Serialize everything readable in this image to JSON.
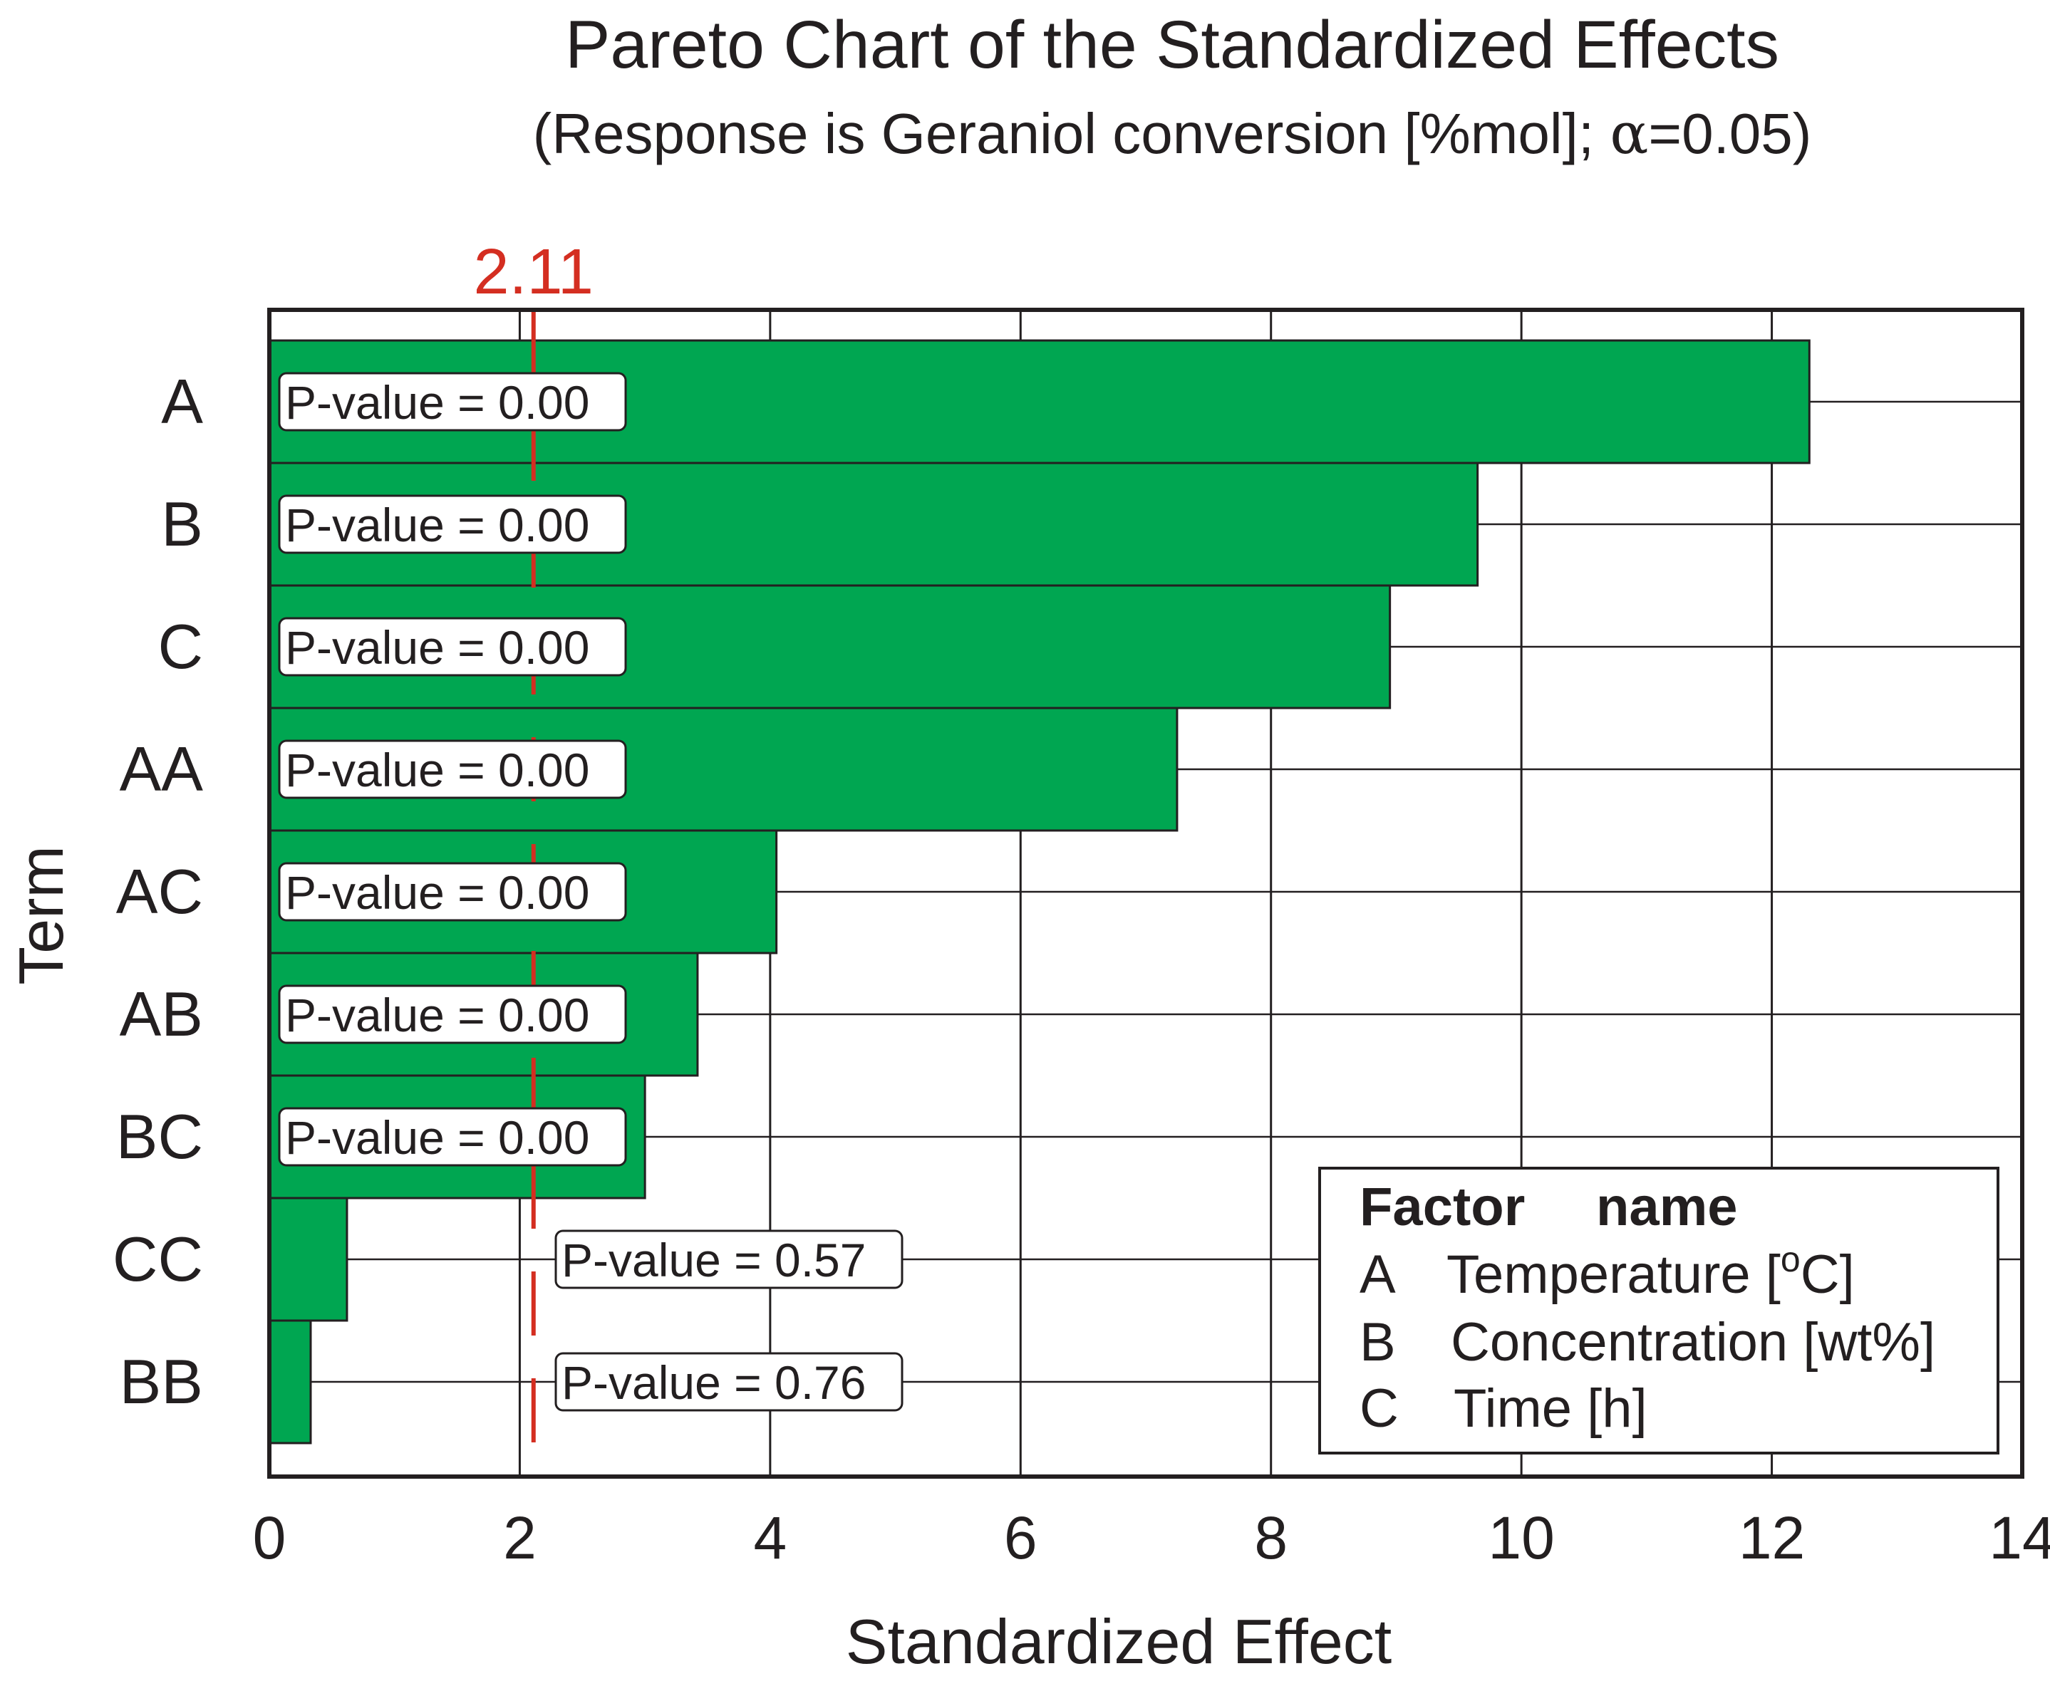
{
  "chart_data": {
    "type": "bar",
    "orientation": "horizontal",
    "title": "Pareto Chart of the Standardized Effects",
    "subtitle_prefix": "(Response is Geraniol conversion [%mol]; ",
    "subtitle_alpha_symbol": "α",
    "subtitle_suffix": "=0.05)",
    "xlabel": "Standardized Effect",
    "ylabel": "Term",
    "xlim": [
      0,
      14
    ],
    "xticks": [
      "0",
      "2",
      "4",
      "6",
      "8",
      "10",
      "12",
      "14"
    ],
    "grid": true,
    "reference_line": {
      "value": 2.11,
      "label": "2.11",
      "color": "#d42e21"
    },
    "bar_color": "#00a651",
    "categories": [
      "A",
      "B",
      "C",
      "AA",
      "AC",
      "AB",
      "BC",
      "CC",
      "BB"
    ],
    "values": [
      12.3,
      9.65,
      8.95,
      7.25,
      4.05,
      3.42,
      3.0,
      0.62,
      0.33
    ],
    "p_value_labels": [
      "P-value = 0.00",
      "P-value = 0.00",
      "P-value = 0.00",
      "P-value = 0.00",
      "P-value = 0.00",
      "P-value = 0.00",
      "P-value = 0.00",
      "P-value = 0.57",
      "P-value = 0.76"
    ],
    "legend": {
      "placement": "bottom-right",
      "header_factor": "Factor",
      "header_name": "name",
      "entries": [
        {
          "factor": "A",
          "name_prefix": "Temperature [",
          "superscript": "o",
          "name_suffix": "C]"
        },
        {
          "factor": "B",
          "name_prefix": "Concentration [wt%]",
          "superscript": "",
          "name_suffix": ""
        },
        {
          "factor": "C",
          "name_prefix": "Time [h]",
          "superscript": "",
          "name_suffix": ""
        }
      ]
    }
  }
}
